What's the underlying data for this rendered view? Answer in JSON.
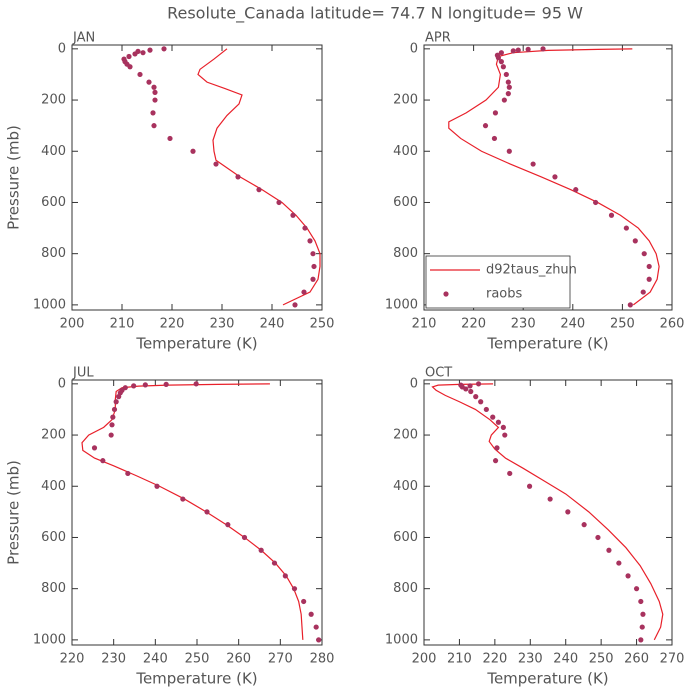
{
  "title": "Resolute_Canada  latitude= 74.7 N longitude= 95 W",
  "chart_data": [
    {
      "type": "line",
      "label": "JAN",
      "xlabel": "Temperature (K)",
      "ylabel": "Pressure (mb)",
      "xlim": [
        200,
        250
      ],
      "xticks": [
        200,
        210,
        220,
        230,
        240,
        250
      ],
      "ylim": [
        1020,
        -15
      ],
      "yticks": [
        0,
        200,
        400,
        600,
        800,
        1000
      ],
      "series": [
        {
          "mode": "line",
          "color": "#e8202a",
          "x": [
            231,
            228.4,
            225.6,
            225.2,
            227,
            230.6,
            234,
            233.4,
            231,
            229,
            228.2,
            228.4,
            228.8,
            233.6,
            238,
            242,
            244.8,
            247,
            248.6,
            249.6,
            249.6,
            249.2,
            247.6,
            242.2
          ],
          "y": [
            0,
            40,
            80,
            100,
            130,
            155,
            180,
            215,
            260,
            310,
            357,
            400,
            435,
            500,
            550,
            600,
            650,
            700,
            750,
            800,
            850,
            900,
            950,
            1000
          ]
        },
        {
          "mode": "markers",
          "color": "#a8325e",
          "x": [
            218.4,
            215.6,
            213.2,
            214.2,
            212.6,
            211.4,
            210.4,
            210.6,
            211,
            211.6,
            213.6,
            215.4,
            216.4,
            216.6,
            216.6,
            216.2,
            216.4,
            219.6,
            224.2,
            228.8,
            233.2,
            237.4,
            241.4,
            244.2,
            246.6,
            247.6,
            248.2,
            248.4,
            248.2,
            246.4,
            244.6
          ],
          "y": [
            0,
            5,
            10,
            15,
            20,
            30,
            40,
            50,
            60,
            70,
            100,
            130,
            150,
            170,
            200,
            250,
            300,
            350,
            400,
            450,
            500,
            550,
            600,
            650,
            700,
            750,
            800,
            850,
            900,
            950,
            1000
          ]
        }
      ]
    },
    {
      "type": "line",
      "label": "APR",
      "xlabel": "Temperature (K)",
      "xlim": [
        210,
        260
      ],
      "xticks": [
        210,
        220,
        230,
        240,
        250,
        260
      ],
      "ylim": [
        1020,
        -15
      ],
      "yticks": [
        0,
        200,
        400,
        600,
        800,
        1000
      ],
      "legend": "lower left",
      "series": [
        {
          "name": "d92taus_zhun",
          "mode": "line",
          "color": "#e8202a",
          "x": [
            252,
            245,
            235,
            228,
            225,
            224.6,
            225.4,
            225,
            222.5,
            218.5,
            215,
            215,
            217.4,
            221.6,
            227.4,
            233.6,
            239.6,
            245,
            249.6,
            253.2,
            255.4,
            256.8,
            257.4,
            257,
            255.6,
            252.2
          ],
          "y": [
            0,
            2,
            6,
            15,
            30,
            60,
            100,
            150,
            200,
            250,
            285,
            310,
            350,
            400,
            450,
            500,
            550,
            600,
            650,
            700,
            750,
            800,
            850,
            900,
            950,
            1000
          ]
        },
        {
          "name": "raobs",
          "mode": "markers",
          "color": "#a8325e",
          "x": [
            234,
            231,
            229,
            228,
            225.6,
            224.8,
            225,
            225.6,
            226,
            226.6,
            227,
            227.2,
            227,
            226.2,
            224.4,
            222.4,
            224.2,
            227.2,
            232,
            236.4,
            240.6,
            244.6,
            247.8,
            250.8,
            252.6,
            254.4,
            255.4,
            255.4,
            254.2,
            251.6
          ],
          "y": [
            0,
            2,
            5,
            8,
            15,
            25,
            35,
            50,
            70,
            100,
            130,
            150,
            175,
            200,
            250,
            300,
            350,
            400,
            450,
            500,
            550,
            600,
            650,
            700,
            750,
            800,
            850,
            900,
            950,
            1000
          ]
        }
      ]
    },
    {
      "type": "line",
      "label": "JUL",
      "xlabel": "Temperature (K)",
      "ylabel": "Pressure (mb)",
      "xlim": [
        220,
        280
      ],
      "xticks": [
        220,
        230,
        240,
        250,
        260,
        270,
        280
      ],
      "ylim": [
        1020,
        -15
      ],
      "yticks": [
        0,
        200,
        400,
        600,
        800,
        1000
      ],
      "series": [
        {
          "mode": "line",
          "color": "#e8202a",
          "x": [
            267.5,
            255,
            243,
            236,
            232,
            230.6,
            230.4,
            230.4,
            229.6,
            227.6,
            224,
            222.4,
            222.6,
            225.4,
            230,
            235.6,
            241,
            247,
            252.2,
            257,
            261.4,
            265.4,
            268.8,
            271.4,
            273.2,
            274.4,
            275,
            275.2,
            275.4
          ],
          "y": [
            0,
            2,
            5,
            9,
            15,
            30,
            60,
            100,
            140,
            170,
            200,
            230,
            260,
            290,
            320,
            360,
            400,
            450,
            500,
            550,
            600,
            650,
            700,
            750,
            800,
            850,
            900,
            950,
            1000
          ]
        },
        {
          "mode": "markers",
          "color": "#a8325e",
          "x": [
            249.8,
            242.6,
            237.6,
            234.8,
            232.8,
            232,
            231.6,
            231.2,
            230.6,
            230.2,
            229.8,
            229.6,
            229.4,
            225.4,
            227.4,
            233.4,
            240.4,
            246.6,
            252.4,
            257.4,
            261.4,
            265.4,
            268.6,
            271.2,
            273.4,
            275.6,
            277.4,
            278.6,
            279.2
          ],
          "y": [
            0,
            2,
            4,
            8,
            15,
            25,
            35,
            50,
            70,
            100,
            130,
            160,
            200,
            250,
            300,
            350,
            400,
            450,
            500,
            550,
            600,
            650,
            700,
            750,
            800,
            850,
            900,
            950,
            1000
          ]
        }
      ]
    },
    {
      "type": "line",
      "label": "OCT",
      "xlabel": "Temperature (K)",
      "xlim": [
        200,
        270
      ],
      "xticks": [
        200,
        210,
        220,
        230,
        240,
        250,
        260,
        270
      ],
      "ylim": [
        1020,
        -15
      ],
      "yticks": [
        0,
        200,
        400,
        600,
        800,
        1000
      ],
      "series": [
        {
          "mode": "line",
          "color": "#e8202a",
          "x": [
            219.5,
            210,
            204,
            202.4,
            203.4,
            206,
            210,
            214.5,
            218.6,
            221,
            219,
            218.4,
            220,
            223,
            228,
            234,
            240,
            246.5,
            252,
            257,
            261,
            264,
            266.4,
            267.4,
            266.8,
            265
          ],
          "y": [
            0,
            2,
            5,
            12,
            25,
            45,
            70,
            100,
            140,
            170,
            200,
            225,
            255,
            290,
            330,
            380,
            430,
            500,
            570,
            640,
            710,
            780,
            850,
            900,
            950,
            1000
          ]
        },
        {
          "mode": "markers",
          "color": "#a8325e",
          "x": [
            215.4,
            213,
            210.4,
            210.8,
            211.8,
            213.2,
            214.6,
            216,
            217.6,
            219.4,
            221,
            222.4,
            222.8,
            220.6,
            220.2,
            224.2,
            229.8,
            235.6,
            240.6,
            245.2,
            249.1,
            252.2,
            255,
            257.6,
            260,
            261.2,
            261.8,
            261.6,
            261.2
          ],
          "y": [
            0,
            8,
            5,
            12,
            20,
            30,
            50,
            70,
            100,
            130,
            150,
            170,
            200,
            250,
            300,
            350,
            400,
            450,
            500,
            550,
            600,
            650,
            700,
            750,
            800,
            850,
            900,
            950,
            1000
          ]
        }
      ]
    }
  ]
}
